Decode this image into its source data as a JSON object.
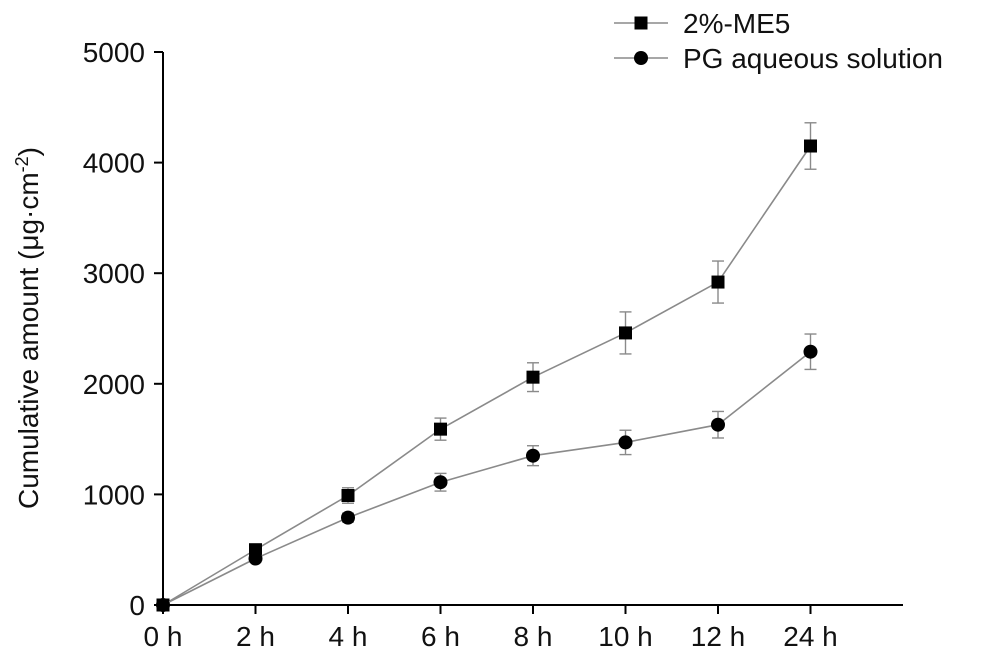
{
  "chart_data": {
    "type": "line",
    "title": "",
    "xlabel": "",
    "ylabel": "Cumulative amount (μg·cm",
    "ylabel_sup": "-2",
    "ylabel_close": ")",
    "categories": [
      "0 h",
      "2 h",
      "4 h",
      "6 h",
      "8 h",
      "10 h",
      "12 h",
      "24 h"
    ],
    "ylim": [
      0,
      5000
    ],
    "yticks": [
      0,
      1000,
      2000,
      3000,
      4000,
      5000
    ],
    "ytick_labels": [
      "0",
      "1000",
      "2000",
      "3000",
      "4000",
      "5000"
    ],
    "grid": false,
    "legend_position": "top-right",
    "series": [
      {
        "name": "2%-ME5",
        "marker": "square",
        "values": [
          0,
          500,
          990,
          1590,
          2060,
          2460,
          2920,
          4150
        ],
        "errors": [
          0,
          40,
          70,
          100,
          130,
          190,
          190,
          210
        ]
      },
      {
        "name": "PG aqueous solution",
        "marker": "circle",
        "values": [
          0,
          420,
          790,
          1110,
          1350,
          1470,
          1630,
          2290
        ],
        "errors": [
          0,
          30,
          40,
          80,
          90,
          110,
          120,
          160
        ]
      }
    ]
  }
}
